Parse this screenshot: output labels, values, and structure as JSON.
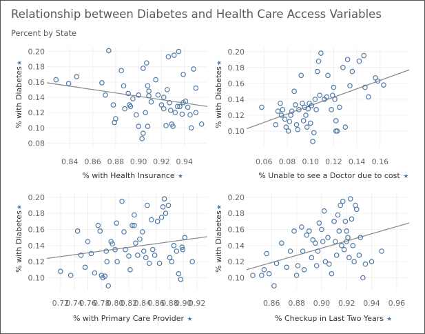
{
  "title": "Relationship between Diabetes and Health Care Access Variables",
  "subtitle": "Percent by State",
  "colors": {
    "marker": "#4e79a7",
    "trend": "#8c8c8c",
    "grid": "#f0f0f0",
    "text": "#333333"
  },
  "pin_icon": "pin-icon",
  "chart_data": [
    {
      "type": "scatter",
      "xlabel": "% with Health Insurance",
      "ylabel": "% with Diabetes",
      "xlim": [
        0.82,
        0.96
      ],
      "ylim": [
        0.075,
        0.205
      ],
      "xticks": [
        0.84,
        0.86,
        0.88,
        0.9,
        0.92,
        0.94
      ],
      "xtick_labels": [
        "0.84",
        "0.86",
        "0.88",
        "0.90",
        "0.92",
        "0.94"
      ],
      "yticks": [
        0.08,
        0.1,
        0.12,
        0.14,
        0.16,
        0.18,
        0.2
      ],
      "ytick_labels": [
        "0.08",
        "0.10",
        "0.12",
        "0.14",
        "0.16",
        "0.18",
        "0.20"
      ],
      "trendline": [
        [
          0.82,
          0.159
        ],
        [
          0.96,
          0.128
        ]
      ],
      "points": [
        [
          0.828,
          0.163
        ],
        [
          0.839,
          0.158
        ],
        [
          0.846,
          0.167
        ],
        [
          0.868,
          0.159
        ],
        [
          0.871,
          0.143
        ],
        [
          0.874,
          0.201
        ],
        [
          0.878,
          0.13
        ],
        [
          0.879,
          0.107
        ],
        [
          0.88,
          0.112
        ],
        [
          0.885,
          0.175
        ],
        [
          0.887,
          0.155
        ],
        [
          0.888,
          0.125
        ],
        [
          0.891,
          0.145
        ],
        [
          0.892,
          0.13
        ],
        [
          0.893,
          0.128
        ],
        [
          0.895,
          0.138
        ],
        [
          0.898,
          0.117
        ],
        [
          0.9,
          0.143
        ],
        [
          0.9,
          0.102
        ],
        [
          0.903,
          0.086
        ],
        [
          0.904,
          0.093
        ],
        [
          0.904,
          0.178
        ],
        [
          0.906,
          0.12
        ],
        [
          0.907,
          0.185
        ],
        [
          0.908,
          0.102
        ],
        [
          0.908,
          0.155
        ],
        [
          0.909,
          0.148
        ],
        [
          0.909,
          0.142
        ],
        [
          0.911,
          0.134
        ],
        [
          0.915,
          0.163
        ],
        [
          0.917,
          0.143
        ],
        [
          0.92,
          0.13
        ],
        [
          0.922,
          0.14
        ],
        [
          0.922,
          0.125
        ],
        [
          0.924,
          0.103
        ],
        [
          0.925,
          0.15
        ],
        [
          0.926,
          0.193
        ],
        [
          0.927,
          0.133
        ],
        [
          0.928,
          0.123
        ],
        [
          0.929,
          0.105
        ],
        [
          0.93,
          0.102
        ],
        [
          0.931,
          0.195
        ],
        [
          0.932,
          0.12
        ],
        [
          0.935,
          0.2
        ],
        [
          0.936,
          0.128
        ],
        [
          0.938,
          0.118
        ],
        [
          0.939,
          0.133
        ],
        [
          0.939,
          0.17
        ],
        [
          0.941,
          0.135
        ],
        [
          0.943,
          0.127
        ],
        [
          0.945,
          0.117
        ],
        [
          0.946,
          0.1
        ],
        [
          0.948,
          0.177
        ],
        [
          0.95,
          0.152
        ],
        [
          0.955,
          0.105
        ],
        [
          0.95,
          0.12
        ],
        [
          0.934,
          0.128
        ]
      ]
    },
    {
      "type": "scatter",
      "xlabel": "% Unable to see a Doctor due to cost",
      "ylabel": "% with Diabetes",
      "xlim": [
        0.045,
        0.185
      ],
      "ylim": [
        0.08,
        0.205
      ],
      "xticks": [
        0.06,
        0.08,
        0.1,
        0.12,
        0.14,
        0.16
      ],
      "xtick_labels": [
        "0.06",
        "0.08",
        "0.10",
        "0.12",
        "0.14",
        "0.16"
      ],
      "yticks": [
        0.1,
        0.12,
        0.14,
        0.16,
        0.18,
        0.2
      ],
      "ytick_labels": [
        "0.10",
        "0.12",
        "0.14",
        "0.16",
        "0.18",
        "0.20"
      ],
      "trendline": [
        [
          0.045,
          0.103
        ],
        [
          0.185,
          0.177
        ]
      ],
      "points": [
        [
          0.058,
          0.13
        ],
        [
          0.07,
          0.108
        ],
        [
          0.072,
          0.125
        ],
        [
          0.074,
          0.135
        ],
        [
          0.075,
          0.12
        ],
        [
          0.076,
          0.127
        ],
        [
          0.078,
          0.115
        ],
        [
          0.079,
          0.105
        ],
        [
          0.081,
          0.1
        ],
        [
          0.082,
          0.112
        ],
        [
          0.083,
          0.12
        ],
        [
          0.084,
          0.125
        ],
        [
          0.086,
          0.15
        ],
        [
          0.087,
          0.133
        ],
        [
          0.088,
          0.108
        ],
        [
          0.089,
          0.102
        ],
        [
          0.09,
          0.127
        ],
        [
          0.092,
          0.17
        ],
        [
          0.093,
          0.135
        ],
        [
          0.094,
          0.113
        ],
        [
          0.095,
          0.13
        ],
        [
          0.096,
          0.12
        ],
        [
          0.097,
          0.105
        ],
        [
          0.098,
          0.128
        ],
        [
          0.099,
          0.135
        ],
        [
          0.1,
          0.11
        ],
        [
          0.101,
          0.132
        ],
        [
          0.102,
          0.087
        ],
        [
          0.103,
          0.098
        ],
        [
          0.104,
          0.14
        ],
        [
          0.105,
          0.127
        ],
        [
          0.106,
          0.175
        ],
        [
          0.107,
          0.188
        ],
        [
          0.108,
          0.145
        ],
        [
          0.109,
          0.198
        ],
        [
          0.112,
          0.14
        ],
        [
          0.114,
          0.143
        ],
        [
          0.115,
          0.17
        ],
        [
          0.118,
          0.127
        ],
        [
          0.119,
          0.145
        ],
        [
          0.12,
          0.155
        ],
        [
          0.121,
          0.14
        ],
        [
          0.122,
          0.113
        ],
        [
          0.122,
          0.1
        ],
        [
          0.123,
          0.1
        ],
        [
          0.125,
          0.13
        ],
        [
          0.128,
          0.18
        ],
        [
          0.13,
          0.105
        ],
        [
          0.132,
          0.19
        ],
        [
          0.134,
          0.157
        ],
        [
          0.136,
          0.175
        ],
        [
          0.142,
          0.188
        ],
        [
          0.146,
          0.195
        ],
        [
          0.147,
          0.155
        ],
        [
          0.15,
          0.143
        ],
        [
          0.156,
          0.167
        ],
        [
          0.158,
          0.163
        ],
        [
          0.163,
          0.158
        ]
      ]
    },
    {
      "type": "scatter",
      "xlabel": "% with Primary Care Provider",
      "ylabel": "% with Diabetes",
      "xlim": [
        0.7,
        0.935
      ],
      "ylim": [
        0.085,
        0.205
      ],
      "xticks": [
        0.72,
        0.74,
        0.76,
        0.78,
        0.8,
        0.82,
        0.84,
        0.86,
        0.88,
        0.9,
        0.92
      ],
      "xtick_labels": [
        "0.72",
        "0.74",
        "0.76",
        "0.78",
        "0.80",
        "0.82",
        "0.84",
        "0.86",
        "0.88",
        "0.90",
        "0.92"
      ],
      "yticks": [
        0.1,
        0.12,
        0.14,
        0.16,
        0.18,
        0.2
      ],
      "ytick_labels": [
        "0.10",
        "0.12",
        "0.14",
        "0.16",
        "0.18",
        "0.20"
      ],
      "trendline": [
        [
          0.7,
          0.124
        ],
        [
          0.935,
          0.151
        ]
      ],
      "points": [
        [
          0.72,
          0.108
        ],
        [
          0.735,
          0.103
        ],
        [
          0.745,
          0.158
        ],
        [
          0.75,
          0.128
        ],
        [
          0.756,
          0.113
        ],
        [
          0.76,
          0.145
        ],
        [
          0.765,
          0.13
        ],
        [
          0.77,
          0.106
        ],
        [
          0.775,
          0.165
        ],
        [
          0.778,
          0.158
        ],
        [
          0.78,
          0.103
        ],
        [
          0.782,
          0.1
        ],
        [
          0.785,
          0.102
        ],
        [
          0.787,
          0.133
        ],
        [
          0.788,
          0.12
        ],
        [
          0.79,
          0.09
        ],
        [
          0.794,
          0.145
        ],
        [
          0.796,
          0.142
        ],
        [
          0.8,
          0.135
        ],
        [
          0.802,
          0.168
        ],
        [
          0.803,
          0.12
        ],
        [
          0.81,
          0.195
        ],
        [
          0.813,
          0.157
        ],
        [
          0.815,
          0.135
        ],
        [
          0.82,
          0.127
        ],
        [
          0.822,
          0.11
        ],
        [
          0.825,
          0.165
        ],
        [
          0.828,
          0.178
        ],
        [
          0.83,
          0.143
        ],
        [
          0.833,
          0.128
        ],
        [
          0.836,
          0.148
        ],
        [
          0.84,
          0.157
        ],
        [
          0.842,
          0.133
        ],
        [
          0.845,
          0.125
        ],
        [
          0.847,
          0.19
        ],
        [
          0.85,
          0.118
        ],
        [
          0.853,
          0.172
        ],
        [
          0.855,
          0.135
        ],
        [
          0.858,
          0.128
        ],
        [
          0.862,
          0.17
        ],
        [
          0.865,
          0.118
        ],
        [
          0.868,
          0.175
        ],
        [
          0.87,
          0.188
        ],
        [
          0.872,
          0.198
        ],
        [
          0.874,
          0.18
        ],
        [
          0.878,
          0.19
        ],
        [
          0.88,
          0.125
        ],
        [
          0.883,
          0.12
        ],
        [
          0.886,
          0.14
        ],
        [
          0.89,
          0.133
        ],
        [
          0.893,
          0.105
        ],
        [
          0.896,
          0.098
        ],
        [
          0.899,
          0.135
        ],
        [
          0.902,
          0.15
        ],
        [
          0.913,
          0.12
        ],
        [
          0.898,
          0.138
        ],
        [
          0.828,
          0.165
        ]
      ]
    },
    {
      "type": "scatter",
      "xlabel": "% Checkup in Last Two Years",
      "ylabel": "% with Diabetes",
      "xlim": [
        0.84,
        0.97
      ],
      "ylim": [
        0.085,
        0.205
      ],
      "xticks": [
        0.86,
        0.88,
        0.9,
        0.92,
        0.94,
        0.96
      ],
      "xtick_labels": [
        "0.86",
        "0.88",
        "0.90",
        "0.92",
        "0.94",
        "0.96"
      ],
      "yticks": [
        0.1,
        0.12,
        0.14,
        0.16,
        0.18,
        0.2
      ],
      "ytick_labels": [
        "0.10",
        "0.12",
        "0.14",
        "0.16",
        "0.18",
        "0.20"
      ],
      "trendline": [
        [
          0.84,
          0.11
        ],
        [
          0.97,
          0.168
        ]
      ],
      "points": [
        [
          0.845,
          0.103
        ],
        [
          0.852,
          0.103
        ],
        [
          0.854,
          0.11
        ],
        [
          0.856,
          0.13
        ],
        [
          0.858,
          0.105
        ],
        [
          0.862,
          0.09
        ],
        [
          0.864,
          0.118
        ],
        [
          0.868,
          0.143
        ],
        [
          0.872,
          0.113
        ],
        [
          0.875,
          0.133
        ],
        [
          0.878,
          0.158
        ],
        [
          0.88,
          0.103
        ],
        [
          0.881,
          0.115
        ],
        [
          0.884,
          0.163
        ],
        [
          0.885,
          0.133
        ],
        [
          0.886,
          0.11
        ],
        [
          0.888,
          0.153
        ],
        [
          0.89,
          0.158
        ],
        [
          0.892,
          0.125
        ],
        [
          0.893,
          0.147
        ],
        [
          0.895,
          0.143
        ],
        [
          0.896,
          0.115
        ],
        [
          0.897,
          0.133
        ],
        [
          0.898,
          0.168
        ],
        [
          0.9,
          0.16
        ],
        [
          0.901,
          0.145
        ],
        [
          0.902,
          0.183
        ],
        [
          0.903,
          0.12
        ],
        [
          0.905,
          0.15
        ],
        [
          0.906,
          0.117
        ],
        [
          0.908,
          0.105
        ],
        [
          0.91,
          0.17
        ],
        [
          0.911,
          0.145
        ],
        [
          0.912,
          0.128
        ],
        [
          0.913,
          0.178
        ],
        [
          0.914,
          0.158
        ],
        [
          0.915,
          0.19
        ],
        [
          0.916,
          0.14
        ],
        [
          0.917,
          0.195
        ],
        [
          0.918,
          0.135
        ],
        [
          0.919,
          0.17
        ],
        [
          0.92,
          0.158
        ],
        [
          0.921,
          0.15
        ],
        [
          0.922,
          0.125
        ],
        [
          0.923,
          0.198
        ],
        [
          0.924,
          0.173
        ],
        [
          0.925,
          0.14
        ],
        [
          0.926,
          0.12
        ],
        [
          0.927,
          0.19
        ],
        [
          0.928,
          0.185
        ],
        [
          0.93,
          0.128
        ],
        [
          0.931,
          0.15
        ],
        [
          0.933,
          0.1
        ],
        [
          0.935,
          0.117
        ],
        [
          0.948,
          0.133
        ],
        [
          0.94,
          0.12
        ],
        [
          0.92,
          0.145
        ]
      ]
    }
  ]
}
